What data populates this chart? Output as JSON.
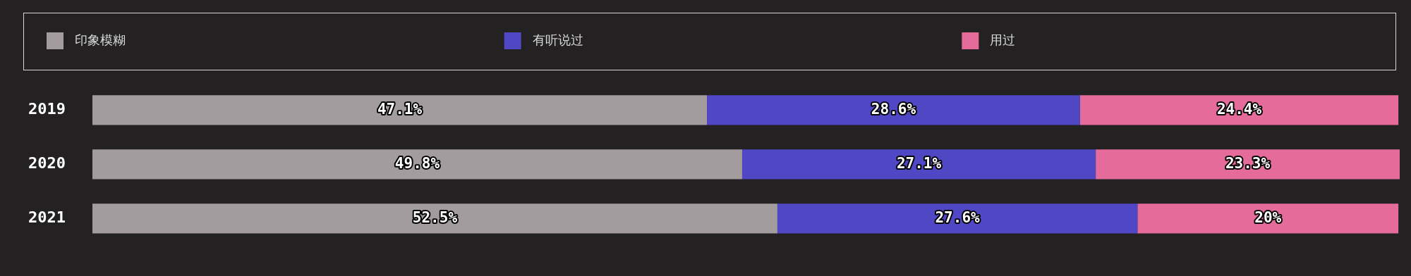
{
  "chart_data": {
    "type": "bar",
    "orientation": "horizontal",
    "stacked": true,
    "categories": [
      "2019",
      "2020",
      "2021"
    ],
    "series": [
      {
        "name": "印象模糊",
        "color": "#a39c9f",
        "values": [
          47.1,
          49.8,
          52.5
        ],
        "value_labels": [
          "47.1%",
          "49.8%",
          "52.5%"
        ]
      },
      {
        "name": "有听说过",
        "color": "#5047c4",
        "values": [
          28.6,
          27.1,
          27.6
        ],
        "value_labels": [
          "28.6%",
          "27.1%",
          "27.6%"
        ]
      },
      {
        "name": "用过",
        "color": "#e56b9b",
        "values": [
          24.4,
          23.3,
          20
        ],
        "value_labels": [
          "24.4%",
          "23.3%",
          "20%"
        ]
      }
    ],
    "legend": "top"
  }
}
